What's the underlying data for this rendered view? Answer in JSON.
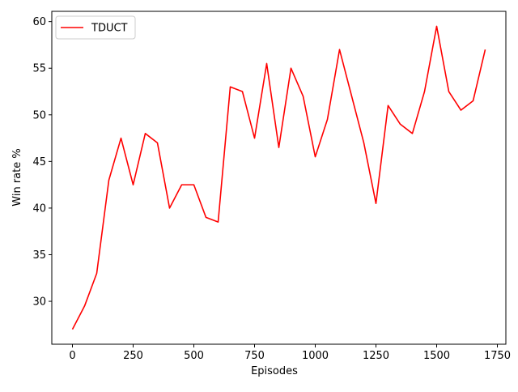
{
  "chart_data": {
    "type": "line",
    "xlabel": "Episodes",
    "ylabel": "Win rate %",
    "xlim": [
      -85,
      1785
    ],
    "ylim": [
      25.4,
      61.1
    ],
    "xticks": [
      0,
      250,
      500,
      750,
      1000,
      1250,
      1500,
      1750
    ],
    "yticks": [
      30,
      35,
      40,
      45,
      50,
      55,
      60
    ],
    "grid": false,
    "legend_position": "top-left",
    "series": [
      {
        "name": "TDUCT",
        "color": "#ff0000",
        "x": [
          0,
          50,
          100,
          150,
          200,
          250,
          300,
          350,
          400,
          450,
          500,
          550,
          600,
          650,
          700,
          750,
          800,
          850,
          900,
          950,
          1000,
          1050,
          1100,
          1150,
          1200,
          1250,
          1300,
          1350,
          1400,
          1450,
          1500,
          1550,
          1600,
          1650,
          1700
        ],
        "y": [
          27.0,
          29.5,
          33.0,
          43.0,
          47.5,
          42.5,
          48.0,
          47.0,
          40.0,
          42.5,
          42.5,
          39.0,
          38.5,
          53.0,
          52.5,
          47.5,
          55.5,
          46.5,
          55.0,
          52.0,
          45.5,
          49.5,
          57.0,
          52.0,
          47.0,
          40.5,
          51.0,
          49.0,
          48.0,
          52.5,
          59.5,
          52.5,
          50.5,
          51.5,
          57.0
        ]
      }
    ]
  }
}
